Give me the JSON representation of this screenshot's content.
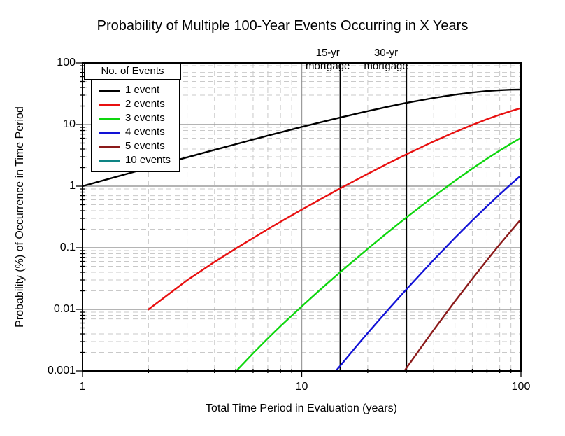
{
  "title": "Probability of Multiple 100-Year Events Occurring in X Years",
  "axes": {
    "x": {
      "label": "Total Time Period in Evaluation (years)",
      "scale": "log",
      "min": 1,
      "max": 100,
      "ticks": [
        "1",
        "10",
        "100"
      ]
    },
    "y": {
      "label": "Probability (%) of Occurrence in Time Period",
      "scale": "log",
      "min": 0.001,
      "max": 100,
      "ticks": [
        "100",
        "10",
        "1",
        "0.1",
        "0.01",
        "0.001"
      ]
    }
  },
  "legend": {
    "title": "No. of Events",
    "position": "top-left"
  },
  "grid": {
    "minor_color": "#c9c9c9",
    "major_color": "#9c9c9c",
    "minor_style": "dashed",
    "frame_color": "#000000"
  },
  "chart_data": {
    "type": "line",
    "title": "Probability of Multiple 100-Year Events Occurring in X Years",
    "xlabel": "Total Time Period in Evaluation (years)",
    "ylabel": "Probability (%) of Occurrence in Time Period",
    "xscale": "log",
    "yscale": "log",
    "xlim": [
      1,
      100
    ],
    "ylim": [
      0.001,
      100
    ],
    "legend_position": "top-left",
    "series": [
      {
        "name": "1 event",
        "color": "#000000",
        "points": [
          [
            1,
            1.0
          ],
          [
            2,
            1.98
          ],
          [
            3,
            2.94
          ],
          [
            4,
            3.88
          ],
          [
            5,
            4.8
          ],
          [
            6,
            5.71
          ],
          [
            7,
            6.59
          ],
          [
            8,
            7.46
          ],
          [
            9,
            8.31
          ],
          [
            10,
            9.14
          ],
          [
            12,
            10.74
          ],
          [
            15,
            13.03
          ],
          [
            20,
            16.52
          ],
          [
            25,
            19.64
          ],
          [
            30,
            22.42
          ],
          [
            40,
            27.03
          ],
          [
            50,
            30.56
          ],
          [
            60,
            33.16
          ],
          [
            70,
            34.99
          ],
          [
            80,
            36.16
          ],
          [
            90,
            36.8
          ],
          [
            100,
            36.97
          ]
        ]
      },
      {
        "name": "2 events",
        "color": "#e81010",
        "points": [
          [
            2,
            0.01
          ],
          [
            3,
            0.0297
          ],
          [
            4,
            0.0588
          ],
          [
            5,
            0.097
          ],
          [
            6,
            0.144
          ],
          [
            7,
            0.2
          ],
          [
            8,
            0.264
          ],
          [
            9,
            0.336
          ],
          [
            10,
            0.415
          ],
          [
            12,
            0.597
          ],
          [
            15,
            0.921
          ],
          [
            20,
            1.586
          ],
          [
            25,
            2.381
          ],
          [
            30,
            3.283
          ],
          [
            40,
            5.324
          ],
          [
            50,
            7.562
          ],
          [
            60,
            9.881
          ],
          [
            70,
            12.19
          ],
          [
            80,
            14.43
          ],
          [
            90,
            16.54
          ],
          [
            100,
            18.48
          ]
        ]
      },
      {
        "name": "3 events",
        "color": "#0ed60e",
        "points": [
          [
            4,
            0.00039
          ],
          [
            5,
            0.00098
          ],
          [
            6,
            0.00194
          ],
          [
            7,
            0.00336
          ],
          [
            8,
            0.00533
          ],
          [
            9,
            0.00791
          ],
          [
            10,
            0.0112
          ],
          [
            12,
            0.0201
          ],
          [
            15,
            0.0403
          ],
          [
            20,
            0.0961
          ],
          [
            25,
            0.1844
          ],
          [
            30,
            0.3095
          ],
          [
            40,
            0.681
          ],
          [
            50,
            1.222
          ],
          [
            60,
            1.93
          ],
          [
            70,
            2.797
          ],
          [
            80,
            3.789
          ],
          [
            90,
            4.901
          ],
          [
            100,
            6.1
          ]
        ]
      },
      {
        "name": "4 events",
        "color": "#1212d6",
        "points": [
          [
            13,
            0.00065
          ],
          [
            14,
            0.00091
          ],
          [
            15,
            0.00122
          ],
          [
            16,
            0.00161
          ],
          [
            18,
            0.00266
          ],
          [
            20,
            0.00413
          ],
          [
            25,
            0.01024
          ],
          [
            30,
            0.0211
          ],
          [
            40,
            0.0636
          ],
          [
            50,
            0.145
          ],
          [
            60,
            0.278
          ],
          [
            70,
            0.472
          ],
          [
            80,
            0.737
          ],
          [
            90,
            1.077
          ],
          [
            100,
            1.494
          ]
        ]
      },
      {
        "name": "5 events",
        "color": "#8b1a1a",
        "points": [
          [
            27,
            0.00065
          ],
          [
            28,
            0.00078
          ],
          [
            30,
            0.00111
          ],
          [
            35,
            0.0024
          ],
          [
            40,
            0.00463
          ],
          [
            45,
            0.00817
          ],
          [
            50,
            0.0135
          ],
          [
            60,
            0.0314
          ],
          [
            70,
            0.0629
          ],
          [
            80,
            0.113
          ],
          [
            90,
            0.187
          ],
          [
            100,
            0.29
          ]
        ]
      },
      {
        "name": "10 events",
        "color": "#0e8484",
        "points": []
      }
    ],
    "annotations": [
      {
        "x": 15,
        "line1": "15-yr",
        "line2": "mortgage"
      },
      {
        "x": 30,
        "line1": "30-yr",
        "line2": "mortgage"
      }
    ]
  }
}
